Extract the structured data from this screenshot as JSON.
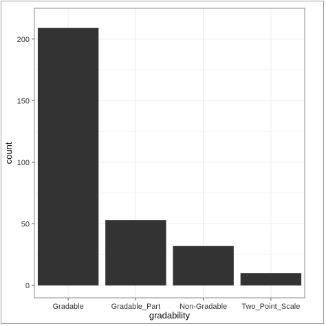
{
  "chart_data": {
    "type": "bar",
    "categories": [
      "Gradable",
      "Gradable_Part",
      "Non-Gradable",
      "Two_Point_Scale"
    ],
    "values": [
      209,
      53,
      32,
      10
    ],
    "title": "",
    "xlabel": "gradability",
    "ylabel": "count",
    "ylim": [
      -10,
      225
    ],
    "yticks": [
      0,
      50,
      100,
      150,
      200
    ],
    "grid": true,
    "bar_color": "#333333",
    "grid_color": "#eeeeee",
    "panel_border_color": "#8a8a8a"
  }
}
